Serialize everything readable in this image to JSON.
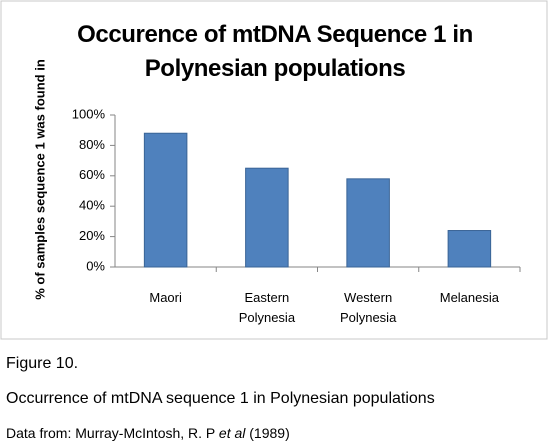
{
  "chart_data": {
    "type": "bar",
    "title": "Occurence of mtDNA Sequence 1 in Polynesian populations",
    "y_label": "% of samples sequence 1 was found in",
    "categories": [
      "Maori",
      "Eastern Polynesia",
      "Western Polynesia",
      "Melanesia"
    ],
    "values": [
      88,
      65,
      58,
      24
    ],
    "color": "#4f81bd",
    "ylim": [
      0,
      100
    ],
    "yticks": [
      {
        "value": 0,
        "label": "0%"
      },
      {
        "value": 20,
        "label": "20%"
      },
      {
        "value": 40,
        "label": "40%"
      },
      {
        "value": 60,
        "label": "60%"
      },
      {
        "value": 80,
        "label": "80%"
      },
      {
        "value": 100,
        "label": "100%"
      }
    ],
    "grid": false
  },
  "figure": {
    "label": "Figure 10.",
    "caption": "Occurrence of mtDNA sequence 1 in Polynesian populations",
    "source": [
      "Data from: Murray-McIntosh, R. P ",
      "et al",
      " (1989)"
    ]
  }
}
